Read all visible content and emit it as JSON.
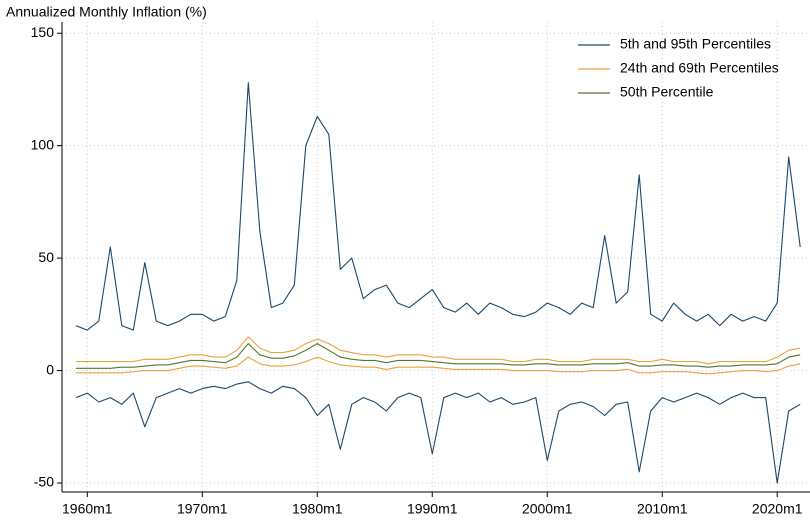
{
  "chart_data": {
    "type": "line",
    "ylabel": "Annualized Monthly Inflation (%)",
    "x": [
      1959,
      1960,
      1961,
      1962,
      1963,
      1964,
      1965,
      1966,
      1967,
      1968,
      1969,
      1970,
      1971,
      1972,
      1973,
      1974,
      1975,
      1976,
      1977,
      1978,
      1979,
      1980,
      1981,
      1982,
      1983,
      1984,
      1985,
      1986,
      1987,
      1988,
      1989,
      1990,
      1991,
      1992,
      1993,
      1994,
      1995,
      1996,
      1997,
      1998,
      1999,
      2000,
      2001,
      2002,
      2003,
      2004,
      2005,
      2006,
      2007,
      2008,
      2009,
      2010,
      2011,
      2012,
      2013,
      2014,
      2015,
      2016,
      2017,
      2018,
      2019,
      2020,
      2021,
      2022
    ],
    "series": [
      {
        "name": "5th and 95th Percentiles",
        "color": "#1a476f",
        "values": [
          [
            20,
            18,
            22,
            55,
            20,
            18,
            48,
            22,
            20,
            22,
            25,
            25,
            22,
            24,
            40,
            128,
            62,
            28,
            30,
            38,
            100,
            113,
            105,
            45,
            50,
            32,
            36,
            38,
            30,
            28,
            32,
            36,
            28,
            26,
            30,
            25,
            30,
            28,
            25,
            24,
            26,
            30,
            28,
            25,
            30,
            28,
            60,
            30,
            35,
            87,
            25,
            22,
            30,
            25,
            22,
            25,
            20,
            25,
            22,
            24,
            22,
            30,
            95,
            55
          ],
          [
            -12,
            -10,
            -14,
            -12,
            -15,
            -10,
            -25,
            -12,
            -10,
            -8,
            -10,
            -8,
            -7,
            -8,
            -6,
            -5,
            -8,
            -10,
            -7,
            -8,
            -12,
            -20,
            -15,
            -35,
            -15,
            -12,
            -14,
            -18,
            -12,
            -10,
            -12,
            -37,
            -12,
            -10,
            -12,
            -10,
            -14,
            -12,
            -15,
            -14,
            -12,
            -40,
            -18,
            -15,
            -14,
            -16,
            -20,
            -15,
            -14,
            -45,
            -18,
            -12,
            -14,
            -12,
            -10,
            -12,
            -15,
            -12,
            -10,
            -12,
            -12,
            -50,
            -18,
            -15
          ]
        ]
      },
      {
        "name": "24th and 69th Percentiles",
        "color": "#e8a33a",
        "values": [
          [
            4,
            4,
            4,
            4,
            4,
            4,
            5,
            5,
            5,
            6,
            7,
            7,
            6,
            6,
            9,
            15,
            10,
            8,
            8,
            9,
            12,
            14,
            12,
            9,
            8,
            7,
            7,
            6,
            7,
            7,
            7,
            6,
            6,
            5,
            5,
            5,
            5,
            5,
            4,
            4,
            5,
            5,
            4,
            4,
            4,
            5,
            5,
            5,
            5,
            4,
            4,
            5,
            4,
            4,
            4,
            3,
            4,
            4,
            4,
            4,
            4,
            6,
            9,
            10
          ],
          [
            -1,
            -1,
            -1,
            -1,
            -1,
            -0.5,
            0,
            0,
            0,
            1,
            2,
            2,
            1.5,
            1,
            2,
            6,
            3,
            2,
            2,
            2.5,
            4,
            6,
            4,
            2.5,
            2,
            1.5,
            1.5,
            0.5,
            1.5,
            1.5,
            1.5,
            1.5,
            1,
            0.5,
            0.5,
            0.5,
            0.5,
            0.5,
            0,
            0,
            0,
            0,
            -0.5,
            -0.5,
            -0.5,
            0,
            0,
            0,
            0.5,
            -1,
            -1,
            -0.5,
            -0.5,
            -0.5,
            -1,
            -1.5,
            -1,
            -0.5,
            0,
            0,
            -0.5,
            0,
            2,
            3
          ]
        ]
      },
      {
        "name": "50th Percentile",
        "color": "#55752f",
        "values": [
          [
            1,
            1,
            1,
            1,
            1.5,
            1.5,
            2,
            2.5,
            2.5,
            3.5,
            4.5,
            4.5,
            4,
            3.5,
            6,
            12,
            7,
            5.5,
            5.5,
            6.5,
            9,
            12,
            9,
            6,
            5,
            4.5,
            4.5,
            3.5,
            4.5,
            4.5,
            4.5,
            4,
            3.5,
            3,
            3,
            3,
            3,
            3,
            2.5,
            2.5,
            3,
            3,
            2.5,
            2.5,
            2.5,
            3,
            3,
            3,
            3.5,
            2,
            2,
            2.5,
            2.5,
            2,
            2,
            1.5,
            2,
            2,
            2.5,
            2.5,
            2.5,
            3,
            6,
            7
          ]
        ]
      }
    ],
    "xlim": [
      1957.8,
      2022.85
    ],
    "xticks": [
      {
        "value": 1960,
        "label": "1960m1"
      },
      {
        "value": 1970,
        "label": "1970m1"
      },
      {
        "value": 1980,
        "label": "1980m1"
      },
      {
        "value": 1990,
        "label": "1990m1"
      },
      {
        "value": 2000,
        "label": "2000m1"
      },
      {
        "value": 2010,
        "label": "2010m1"
      },
      {
        "value": 2020,
        "label": "2020m1"
      }
    ],
    "ylim": [
      -54,
      155
    ],
    "yticks": [
      -50,
      0,
      50,
      100,
      150
    ],
    "grid": true,
    "legend": "top-right"
  }
}
